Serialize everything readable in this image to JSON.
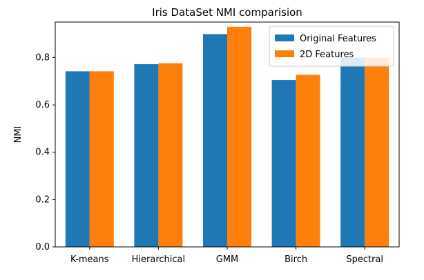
{
  "chart_data": {
    "type": "bar",
    "title": "Iris DataSet NMI comparision",
    "xlabel": "",
    "ylabel": "NMI",
    "categories": [
      "K-means",
      "Hierarchical",
      "GMM",
      "Birch",
      "Spectral"
    ],
    "series": [
      {
        "name": "Original Features",
        "color": "#1f77b4",
        "values": [
          0.742,
          0.772,
          0.899,
          0.705,
          0.8
        ]
      },
      {
        "name": "2D Features",
        "color": "#ff7f0e",
        "values": [
          0.742,
          0.776,
          0.93,
          0.727,
          0.8
        ]
      }
    ],
    "ylim": [
      0,
      0.95
    ],
    "yticks": [
      "0.0",
      "0.2",
      "0.4",
      "0.6",
      "0.8"
    ],
    "grid": false,
    "legend_position": "top-right"
  }
}
